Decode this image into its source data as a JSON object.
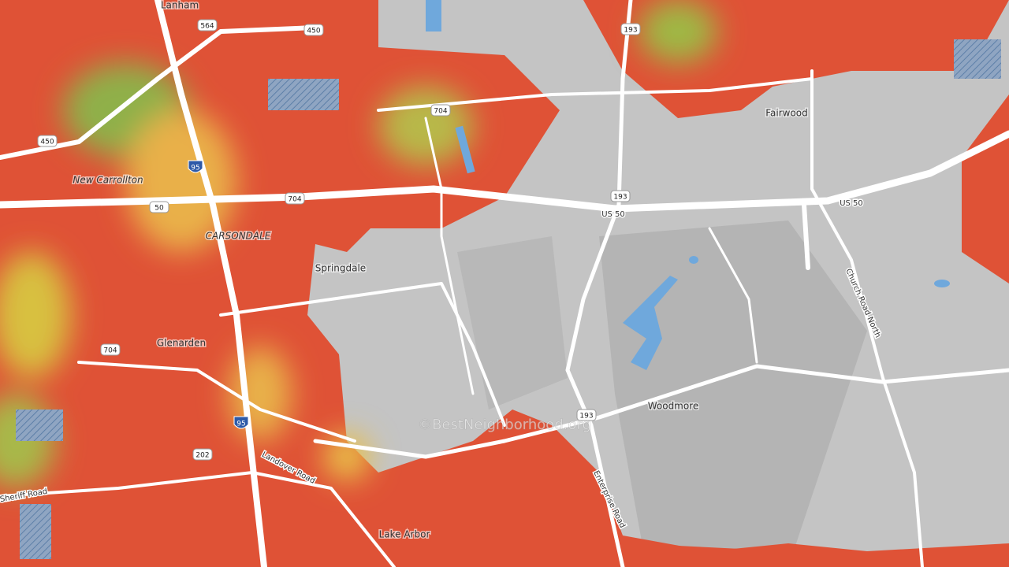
{
  "places": [
    "Lanham",
    "Fairwood",
    "New Carrollton",
    "CARSONDALE",
    "Springdale",
    "Glenarden",
    "Woodmore",
    "Lake Arbor"
  ],
  "road_labels": [
    "US 50",
    "US 50",
    "Church Road North",
    "Landover Road",
    "Enterprise Road",
    "Sheriff Road"
  ],
  "shields": [
    "564",
    "450",
    "450",
    "193",
    "704",
    "704",
    "95",
    "50",
    "193",
    "704",
    "193",
    "95",
    "202"
  ],
  "watermark": "©BestNeighborhood.org"
}
